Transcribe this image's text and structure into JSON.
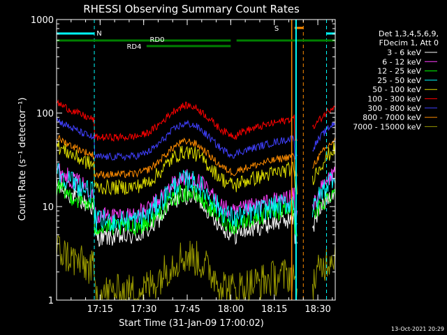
{
  "chart_data": {
    "type": "line",
    "title": "RHESSI Observing Summary Count Rates",
    "xlabel": "Start Time (31-Jan-09 17:00:02)",
    "ylabel": "Count Rate (s⁻¹ detector⁻¹)",
    "yscale": "log",
    "ylim": [
      1,
      1000
    ],
    "xlim_minutes": [
      0,
      96
    ],
    "x_ticks": [
      "17:15",
      "17:30",
      "17:45",
      "18:00",
      "18:15",
      "18:30"
    ],
    "y_ticks": [
      "1",
      "10",
      "100",
      "1000"
    ],
    "legend_header": [
      "Det 1,3,4,5,6,9,",
      "FDecim 1, Att 0"
    ],
    "legend_position": "right",
    "footer_date": "13-Oct-2021 20:29",
    "series": [
      {
        "name": "3 - 6 keV",
        "color": "#ffffff",
        "peak": 17,
        "base": 4.7,
        "noise": 0.05
      },
      {
        "name": "6 - 12 keV",
        "color": "#ff3fff",
        "peak": 25,
        "base": 8.0,
        "noise": 0.05
      },
      {
        "name": "12 - 25 keV",
        "color": "#00ff00",
        "peak": 16,
        "base": 6.0,
        "noise": 0.05
      },
      {
        "name": "25 - 50 keV",
        "color": "#00ffff",
        "peak": 24,
        "base": 7.0,
        "noise": 0.06
      },
      {
        "name": "50 - 100 keV",
        "color": "#e0e000",
        "peak": 45,
        "base": 16,
        "noise": 0.04
      },
      {
        "name": "100 - 300 keV",
        "color": "#ff0000",
        "peak": 130,
        "base": 55,
        "noise": 0.02
      },
      {
        "name": "300 - 800 keV",
        "color": "#4040ff",
        "peak": 85,
        "base": 34,
        "noise": 0.02
      },
      {
        "name": "800 - 7000 keV",
        "color": "#ff8c00",
        "peak": 55,
        "base": 22,
        "noise": 0.02
      },
      {
        "name": "7000 - 15000 keV",
        "color": "#999900",
        "peak": 3.5,
        "base": 1.2,
        "noise": 0.1
      }
    ],
    "markers": [
      {
        "label": "N",
        "color": "#00ffff",
        "segments_minutes": [
          [
            0,
            13
          ],
          [
            93,
            96
          ]
        ],
        "dashed_lines_minutes": [
          13,
          93
        ]
      },
      {
        "label": "S",
        "color": "#ff8c00",
        "segments_minutes": [
          [
            82,
            85
          ]
        ],
        "solid_line_minute": 81,
        "dashed_line_minute": 85
      },
      {
        "label": "RD0",
        "color": "#008000",
        "segments_minutes": [
          [
            0,
            60
          ],
          [
            62,
            96
          ]
        ]
      },
      {
        "label": "RD4",
        "color": "#008000",
        "segments_minutes": [
          [
            31,
            60
          ]
        ]
      }
    ],
    "vertical_lines_minutes": [
      {
        "minute": 82.5,
        "color": "#00ffff"
      }
    ]
  }
}
